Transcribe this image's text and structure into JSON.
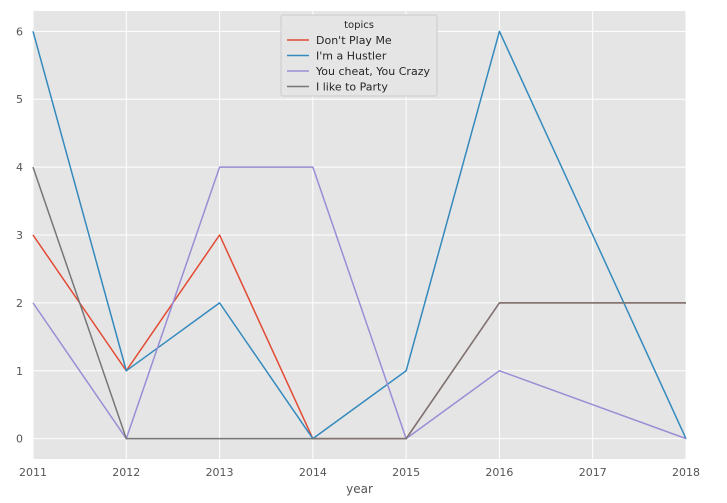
{
  "chart_data": {
    "type": "line",
    "title": "",
    "xlabel": "year",
    "ylabel": "",
    "x": [
      2011,
      2012,
      2013,
      2014,
      2015,
      2016,
      2017,
      2018
    ],
    "xlim": [
      2011,
      2018
    ],
    "ylim": [
      -0.3,
      6.3
    ],
    "xticks": [
      "2011",
      "2012",
      "2013",
      "2014",
      "2015",
      "2016",
      "2017",
      "2018"
    ],
    "yticks": [
      "0",
      "1",
      "2",
      "3",
      "4",
      "5",
      "6"
    ],
    "grid": true,
    "legend": {
      "title": "topics",
      "placement": "top-center"
    },
    "series": [
      {
        "name": "Don't Play Me",
        "color": "#E24A33",
        "values": [
          3,
          1,
          3,
          0,
          0,
          2,
          2,
          2
        ]
      },
      {
        "name": "I'm a Hustler",
        "color": "#348ABD",
        "values": [
          6,
          1,
          2,
          0,
          1,
          6,
          3,
          0
        ]
      },
      {
        "name": "You cheat, You Crazy",
        "color": "#988ED5",
        "values": [
          2,
          0,
          4,
          4,
          0,
          1,
          0.5,
          0
        ]
      },
      {
        "name": "I like to Party",
        "color": "#777777",
        "values": [
          4,
          0,
          0,
          0,
          0,
          2,
          2,
          2
        ]
      }
    ]
  }
}
